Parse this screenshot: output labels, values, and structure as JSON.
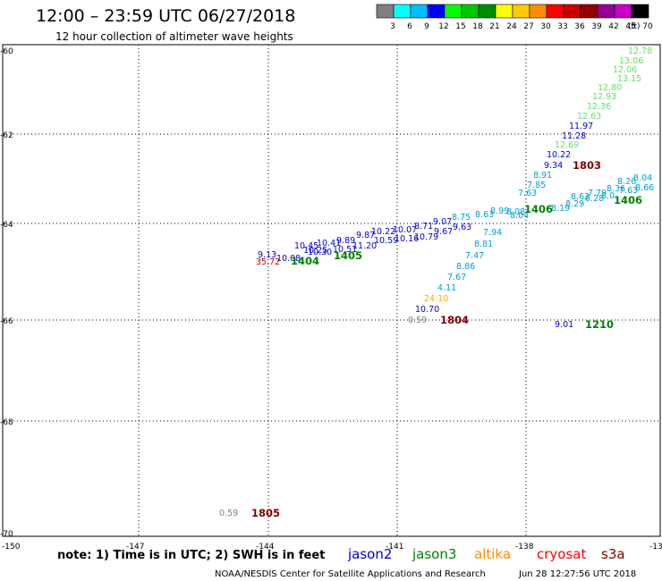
{
  "header": {
    "title": "12:00 – 23:59 UTC 06/27/2018",
    "subtitle": "12 hour collection of altimeter wave heights"
  },
  "legend": {
    "ticks": [
      "3",
      "6",
      "9",
      "12",
      "15",
      "18",
      "21",
      "24",
      "27",
      "30",
      "33",
      "36",
      "39",
      "42",
      "45",
      "70"
    ],
    "unit": "(ft)",
    "colors": [
      "#808080",
      "#00ffff",
      "#00bfff",
      "#0000ff",
      "#00ff00",
      "#00c800",
      "#008c00",
      "#ffff00",
      "#ffc800",
      "#ff8c00",
      "#ff0000",
      "#c80000",
      "#960000",
      "#960096",
      "#c800c8",
      "#000000"
    ]
  },
  "axes": {
    "lat_ticks": [
      "-60",
      "-62",
      "-64",
      "-66",
      "-68",
      "-70"
    ],
    "lon_ticks": [
      "-150",
      "-147",
      "-144",
      "-141",
      "-138",
      "-13"
    ]
  },
  "sat_colors": {
    "jason2": "#0000cd",
    "jason3": "#008000",
    "altika": "#ff8c00",
    "cryosat": "#ff0000",
    "s3a": "#800000"
  },
  "wave_labels": [
    {
      "text": "12.78",
      "color": "#66dd66"
    },
    {
      "text": "13.06",
      "color": "#66dd66"
    },
    {
      "text": "12.06",
      "color": "#66dd66"
    },
    {
      "text": "13.15",
      "color": "#66dd66"
    },
    {
      "text": "12.80",
      "color": "#66dd66"
    },
    {
      "text": "12.93",
      "color": "#66dd66"
    },
    {
      "text": "12.36",
      "color": "#66dd66"
    },
    {
      "text": "12.63",
      "color": "#66dd66"
    },
    {
      "text": "11.97",
      "color": "#0000cd"
    },
    {
      "text": "11.28",
      "color": "#0000cd"
    },
    {
      "text": "12.69",
      "color": "#66dd66"
    },
    {
      "text": "10.22",
      "color": "#0000cd"
    },
    {
      "text": "9.34",
      "color": "#0000cd"
    },
    {
      "text": "8.91",
      "color": "#00a0d0"
    },
    {
      "text": "7.85",
      "color": "#00a0d0"
    },
    {
      "text": "7.63",
      "color": "#00a0d0"
    },
    {
      "text": "8.04",
      "color": "#00a0d0"
    },
    {
      "text": "8.26",
      "color": "#00a0d0"
    },
    {
      "text": "8.66",
      "color": "#00a0d0"
    },
    {
      "text": "8.36",
      "color": "#00a0d0"
    },
    {
      "text": "7.63",
      "color": "#00a0d0"
    },
    {
      "text": "8.0",
      "color": "#00a0d0"
    },
    {
      "text": "7.79",
      "color": "#00a0d0"
    },
    {
      "text": "8.28",
      "color": "#00a0d0"
    },
    {
      "text": "8.62",
      "color": "#00a0d0"
    },
    {
      "text": "8.29",
      "color": "#00a0d0"
    },
    {
      "text": "8.19",
      "color": "#00a0d0"
    },
    {
      "text": "8.04",
      "color": "#00a0d0"
    },
    {
      "text": "8.08",
      "color": "#00a0d0"
    },
    {
      "text": "8.99",
      "color": "#00a0d0"
    },
    {
      "text": "8.63",
      "color": "#00a0d0"
    },
    {
      "text": "8.75",
      "color": "#00a0d0"
    },
    {
      "text": "9.07",
      "color": "#0000cd"
    },
    {
      "text": "9.63",
      "color": "#0000cd"
    },
    {
      "text": "9.67",
      "color": "#0000cd"
    },
    {
      "text": "8.71",
      "color": "#0000cd"
    },
    {
      "text": "10.79",
      "color": "#0000cd"
    },
    {
      "text": "10.07",
      "color": "#0000cd"
    },
    {
      "text": "10.16",
      "color": "#0000cd"
    },
    {
      "text": "10.22",
      "color": "#0000cd"
    },
    {
      "text": "10.59",
      "color": "#0000cd"
    },
    {
      "text": "9.87",
      "color": "#0000cd"
    },
    {
      "text": "9.89",
      "color": "#0000cd"
    },
    {
      "text": "11.20",
      "color": "#0000cd"
    },
    {
      "text": "10.51",
      "color": "#0000cd"
    },
    {
      "text": "10.41",
      "color": "#0000cd"
    },
    {
      "text": "10.25",
      "color": "#0000cd"
    },
    {
      "text": "10.45",
      "color": "#0000cd"
    },
    {
      "text": "10.30",
      "color": "#0000cd"
    },
    {
      "text": "9.13",
      "color": "#0000cd"
    },
    {
      "text": "35.72",
      "color": "#cc0000"
    },
    {
      "text": "10.08",
      "color": "#0000cd"
    },
    {
      "text": "7.94",
      "color": "#00a0d0"
    },
    {
      "text": "8.81",
      "color": "#00a0d0"
    },
    {
      "text": "7.47",
      "color": "#00a0d0"
    },
    {
      "text": "8.86",
      "color": "#00a0d0"
    },
    {
      "text": "7.67",
      "color": "#00a0d0"
    },
    {
      "text": "4.11",
      "color": "#00a0d0"
    },
    {
      "text": "24.10",
      "color": "#ffaa00"
    },
    {
      "text": "10.70",
      "color": "#0000cd"
    },
    {
      "text": "0.59",
      "color": "#808080"
    },
    {
      "text": "9.01",
      "color": "#0000cd"
    },
    {
      "text": "0.59",
      "color": "#808080"
    }
  ],
  "time_tags": [
    {
      "text": "1803",
      "color": "#800000"
    },
    {
      "text": "1406",
      "color": "#008000"
    },
    {
      "text": "1406",
      "color": "#008000"
    },
    {
      "text": "1404",
      "color": "#008000"
    },
    {
      "text": "1405",
      "color": "#008000"
    },
    {
      "text": "1804",
      "color": "#800000"
    },
    {
      "text": "1210",
      "color": "#008000"
    },
    {
      "text": "1805",
      "color": "#800000"
    }
  ],
  "footer": {
    "note": "note: 1) Time is in UTC; 2) SWH is in feet",
    "satellites": [
      "jason2",
      "jason3",
      "altika",
      "cryosat",
      "s3a"
    ],
    "credit": "NOAA/NESDIS Center for Satellite Applications and Research",
    "timestamp": "Jun 28 12:27:56 UTC 2018"
  }
}
